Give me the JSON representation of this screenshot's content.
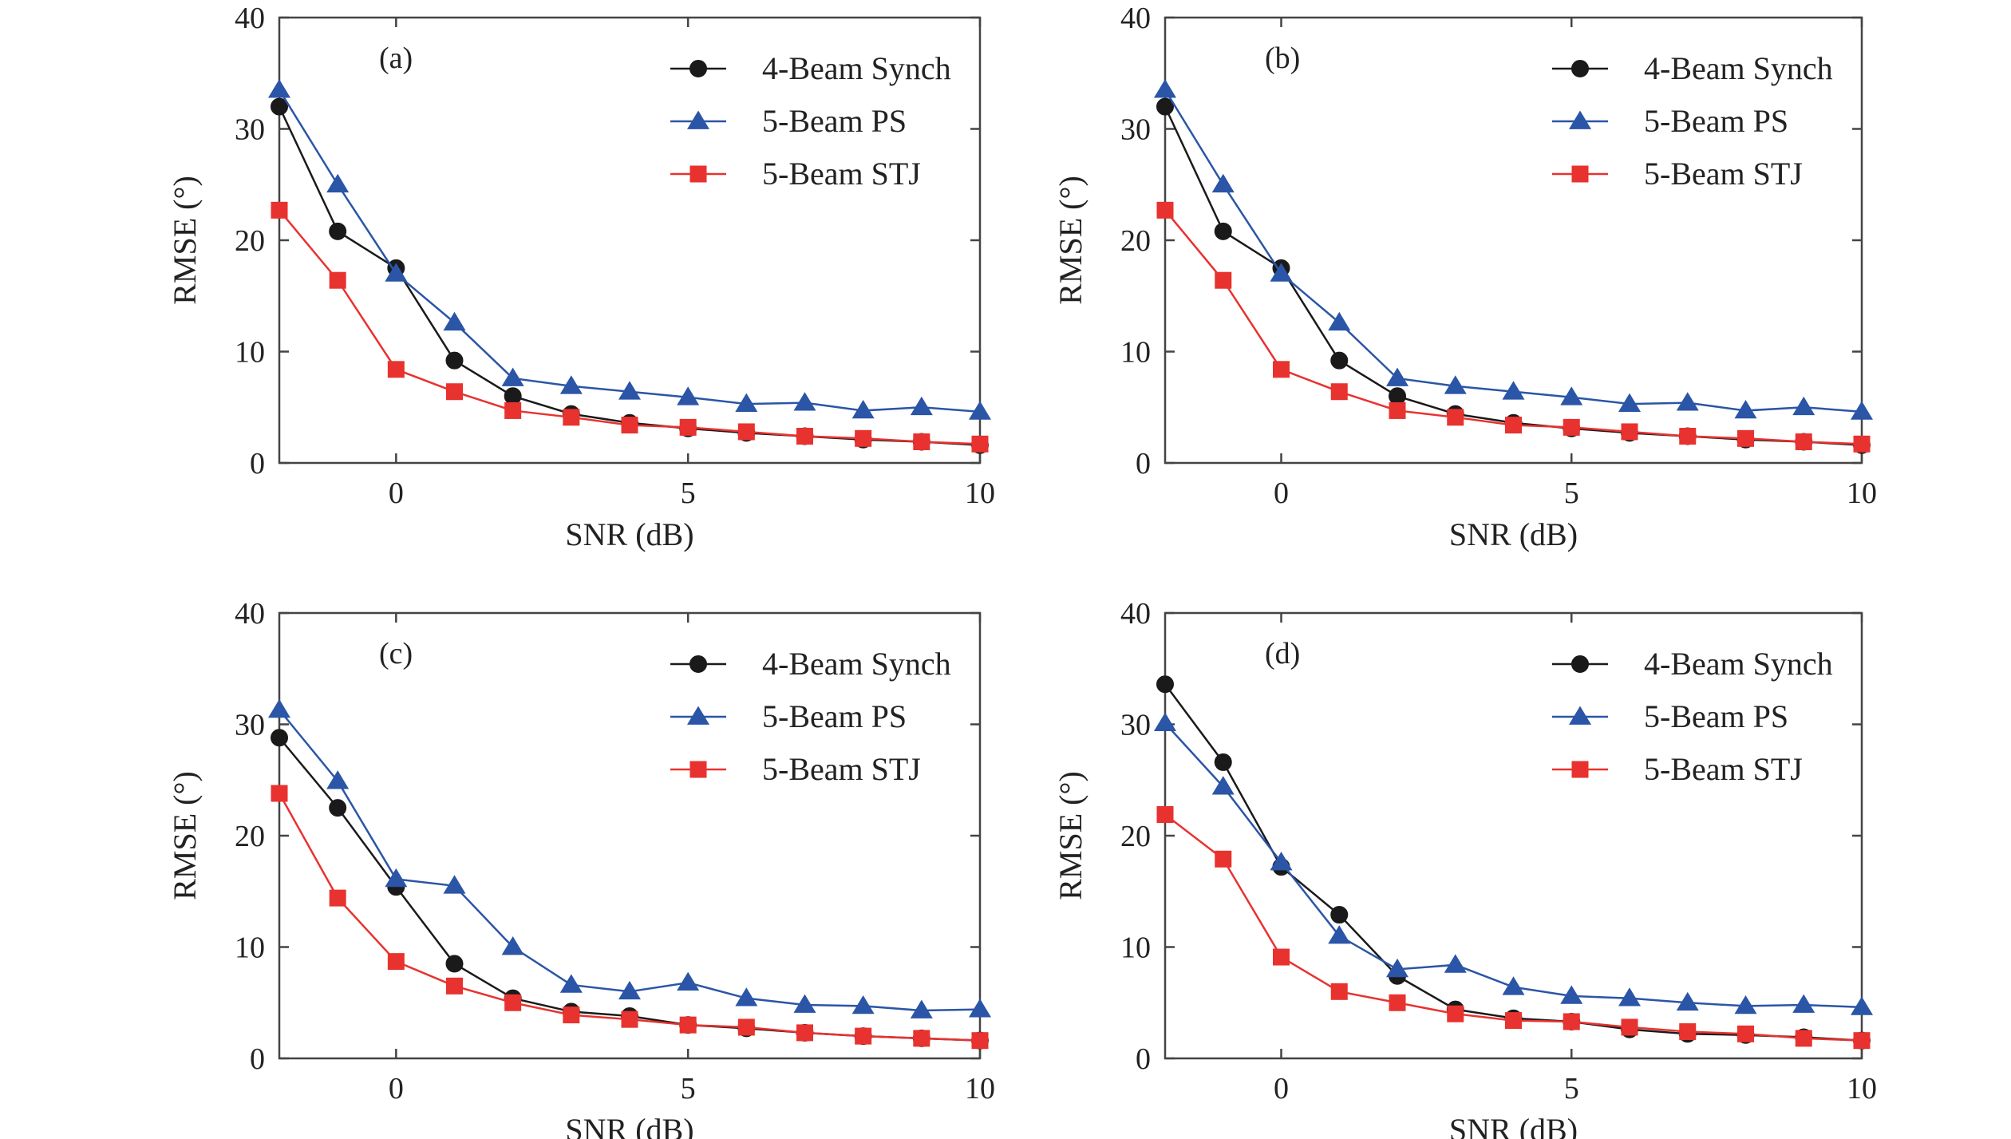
{
  "colors": {
    "synch": "#1a1a1a",
    "ps": "#2b55a6",
    "stj": "#e8322f",
    "axis": "#444444"
  },
  "chart_data": [
    {
      "type": "line",
      "annotation": "(a)",
      "xlabel": "SNR (dB)",
      "ylabel": "RMSE (°)",
      "xlim": [
        -2,
        10
      ],
      "ylim": [
        0,
        40
      ],
      "xticks": [
        0,
        5,
        10
      ],
      "yticks": [
        0,
        10,
        20,
        30,
        40
      ],
      "grid": false,
      "legend_position": "top-right",
      "x": [
        -2,
        -1,
        0,
        1,
        2,
        3,
        4,
        5,
        6,
        7,
        8,
        9,
        10
      ],
      "series": [
        {
          "name": "4-Beam Synch",
          "marker": "circle",
          "color": "#1a1a1a",
          "values": [
            32.0,
            20.8,
            17.5,
            9.2,
            6.0,
            4.4,
            3.6,
            3.1,
            2.7,
            2.4,
            2.1,
            1.9,
            1.6
          ]
        },
        {
          "name": "5-Beam PS",
          "marker": "triangle",
          "color": "#2b55a6",
          "values": [
            33.5,
            25.0,
            17.0,
            12.6,
            7.6,
            6.9,
            6.4,
            5.9,
            5.3,
            5.4,
            4.7,
            5.0,
            4.6
          ]
        },
        {
          "name": "5-Beam STJ",
          "marker": "square",
          "color": "#e8322f",
          "values": [
            22.7,
            16.4,
            8.4,
            6.4,
            4.7,
            4.1,
            3.4,
            3.2,
            2.8,
            2.4,
            2.2,
            1.9,
            1.7
          ]
        }
      ]
    },
    {
      "type": "line",
      "annotation": "(b)",
      "xlabel": "SNR (dB)",
      "ylabel": "RMSE (°)",
      "xlim": [
        -2,
        10
      ],
      "ylim": [
        0,
        40
      ],
      "xticks": [
        0,
        5,
        10
      ],
      "yticks": [
        0,
        10,
        20,
        30,
        40
      ],
      "grid": false,
      "legend_position": "top-right",
      "x": [
        -2,
        -1,
        0,
        1,
        2,
        3,
        4,
        5,
        6,
        7,
        8,
        9,
        10
      ],
      "series": [
        {
          "name": "4-Beam Synch",
          "marker": "circle",
          "color": "#1a1a1a",
          "values": [
            32.0,
            20.8,
            17.5,
            9.2,
            6.0,
            4.4,
            3.6,
            3.1,
            2.7,
            2.4,
            2.1,
            1.9,
            1.6
          ]
        },
        {
          "name": "5-Beam PS",
          "marker": "triangle",
          "color": "#2b55a6",
          "values": [
            33.5,
            25.0,
            17.0,
            12.6,
            7.6,
            6.9,
            6.4,
            5.9,
            5.3,
            5.4,
            4.7,
            5.0,
            4.6
          ]
        },
        {
          "name": "5-Beam STJ",
          "marker": "square",
          "color": "#e8322f",
          "values": [
            22.7,
            16.4,
            8.4,
            6.4,
            4.7,
            4.1,
            3.4,
            3.2,
            2.8,
            2.4,
            2.2,
            1.9,
            1.7
          ]
        }
      ]
    },
    {
      "type": "line",
      "annotation": "(c)",
      "xlabel": "SNR (dB)",
      "ylabel": "RMSE (°)",
      "xlim": [
        -2,
        10
      ],
      "ylim": [
        0,
        40
      ],
      "xticks": [
        0,
        5,
        10
      ],
      "yticks": [
        0,
        10,
        20,
        30,
        40
      ],
      "grid": false,
      "legend_position": "top-right",
      "x": [
        -2,
        -1,
        0,
        1,
        2,
        3,
        4,
        5,
        6,
        7,
        8,
        9,
        10
      ],
      "series": [
        {
          "name": "4-Beam Synch",
          "marker": "circle",
          "color": "#1a1a1a",
          "values": [
            28.8,
            22.5,
            15.4,
            8.5,
            5.4,
            4.2,
            3.8,
            3.0,
            2.7,
            2.3,
            2.0,
            1.8,
            1.6
          ]
        },
        {
          "name": "5-Beam PS",
          "marker": "triangle",
          "color": "#2b55a6",
          "values": [
            31.3,
            24.9,
            16.1,
            15.5,
            10.0,
            6.6,
            6.0,
            6.8,
            5.4,
            4.8,
            4.7,
            4.3,
            4.4
          ]
        },
        {
          "name": "5-Beam STJ",
          "marker": "square",
          "color": "#e8322f",
          "values": [
            23.8,
            14.4,
            8.7,
            6.5,
            5.0,
            3.9,
            3.5,
            3.0,
            2.8,
            2.3,
            2.0,
            1.8,
            1.6
          ]
        }
      ]
    },
    {
      "type": "line",
      "annotation": "(d)",
      "xlabel": "SNR (dB)",
      "ylabel": "RMSE (°)",
      "xlim": [
        -2,
        10
      ],
      "ylim": [
        0,
        40
      ],
      "xticks": [
        0,
        5,
        10
      ],
      "yticks": [
        0,
        10,
        20,
        30,
        40
      ],
      "grid": false,
      "legend_position": "top-right",
      "x": [
        -2,
        -1,
        0,
        1,
        2,
        3,
        4,
        5,
        6,
        7,
        8,
        9,
        10
      ],
      "series": [
        {
          "name": "4-Beam Synch",
          "marker": "circle",
          "color": "#1a1a1a",
          "values": [
            33.6,
            26.6,
            17.2,
            12.9,
            7.4,
            4.4,
            3.6,
            3.3,
            2.6,
            2.2,
            2.1,
            1.9,
            1.6
          ]
        },
        {
          "name": "5-Beam PS",
          "marker": "triangle",
          "color": "#2b55a6",
          "values": [
            30.1,
            24.4,
            17.6,
            11.0,
            8.0,
            8.4,
            6.4,
            5.6,
            5.4,
            5.0,
            4.7,
            4.8,
            4.6
          ]
        },
        {
          "name": "5-Beam STJ",
          "marker": "square",
          "color": "#e8322f",
          "values": [
            21.9,
            17.9,
            9.1,
            6.0,
            5.0,
            4.0,
            3.4,
            3.3,
            2.8,
            2.4,
            2.2,
            1.8,
            1.6
          ]
        }
      ]
    }
  ]
}
